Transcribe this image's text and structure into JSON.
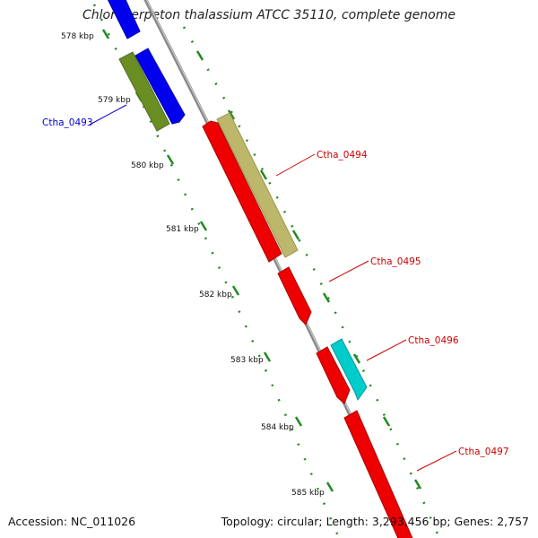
{
  "title": "Chloroherpeton thalassium ATCC 35110, complete genome",
  "footer": {
    "accession": "Accession: NC_011026",
    "summary": "Topology: circular; Length: 3,293,456 bp; Genes: 2,757"
  },
  "scale_labels": [
    "578 kbp",
    "579 kbp",
    "580 kbp",
    "581 kbp",
    "582 kbp",
    "583 kbp",
    "584 kbp",
    "585 kbp"
  ],
  "genes": [
    {
      "label": "Ctha_0493",
      "color": "#0000cc"
    },
    {
      "label": "Ctha_0494",
      "color": "#cc0000"
    },
    {
      "label": "Ctha_0495",
      "color": "#cc0000"
    },
    {
      "label": "Ctha_0496",
      "color": "#cc0000"
    },
    {
      "label": "Ctha_0497",
      "color": "#cc0000"
    }
  ],
  "colors": {
    "backbone": "#8a8a8a",
    "tick_line": "#1f8a1f",
    "forward_gene": "#0000ee",
    "reverse_gene": "#ee0000",
    "olive_feature": "#6b8e23",
    "khaki_feature": "#bdb76b",
    "cyan_feature": "#00cccc"
  }
}
